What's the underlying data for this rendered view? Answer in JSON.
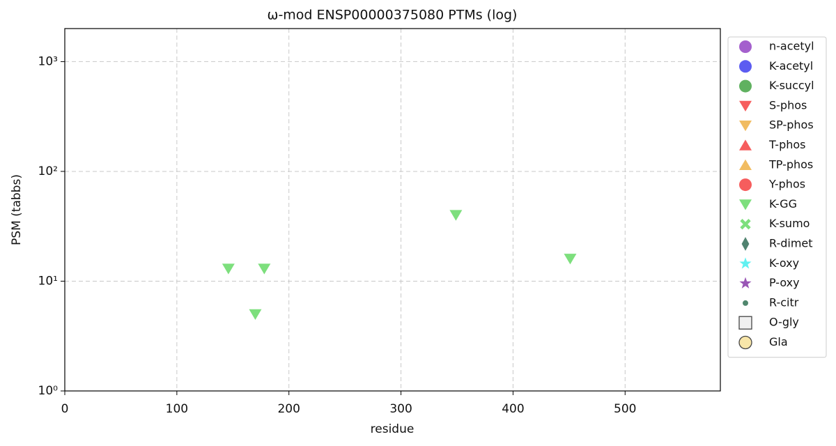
{
  "chart_data": {
    "type": "scatter",
    "title": "ω-mod ENSP00000375080 PTMs (log)",
    "x_label": "residue",
    "y_label": "PSM (tabbs)",
    "xlim": [
      0,
      585
    ],
    "xticks": [
      0,
      100,
      200,
      300,
      400,
      500
    ],
    "ylim": [
      1,
      2000
    ],
    "y_scale": "log",
    "yticks": [
      {
        "value": 1,
        "label": "10⁰"
      },
      {
        "value": 10,
        "label": "10¹"
      },
      {
        "value": 100,
        "label": "10²"
      },
      {
        "value": 1000,
        "label": "10³"
      }
    ],
    "grid": true,
    "legend_position": "outside-right",
    "series": [
      {
        "name": "n-acetyl",
        "color": "#9a4fc8",
        "marker": "circle",
        "x": [],
        "values": []
      },
      {
        "name": "K-acetyl",
        "color": "#4a4af0",
        "marker": "circle",
        "x": [],
        "values": []
      },
      {
        "name": "K-succyl",
        "color": "#4fa84f",
        "marker": "circle",
        "x": [],
        "values": []
      },
      {
        "name": "S-phos",
        "color": "#f54b4b",
        "marker": "triangle-down",
        "x": [],
        "values": []
      },
      {
        "name": "SP-phos",
        "color": "#f0b550",
        "marker": "triangle-down",
        "x": [],
        "values": []
      },
      {
        "name": "T-phos",
        "color": "#f54b4b",
        "marker": "triangle-up",
        "x": [],
        "values": []
      },
      {
        "name": "TP-phos",
        "color": "#f0b550",
        "marker": "triangle-up",
        "x": [],
        "values": []
      },
      {
        "name": "Y-phos",
        "color": "#f54b4b",
        "marker": "circle",
        "x": [],
        "values": []
      },
      {
        "name": "K-GG",
        "color": "#6fdc6f",
        "marker": "triangle-down",
        "x": [
          146,
          178,
          170,
          349,
          451
        ],
        "values": [
          13,
          13,
          5,
          40,
          16
        ]
      },
      {
        "name": "K-sumo",
        "color": "#6fdc6f",
        "marker": "x",
        "x": [],
        "values": []
      },
      {
        "name": "R-dimet",
        "color": "#3d7560",
        "marker": "diamond",
        "x": [],
        "values": []
      },
      {
        "name": "K-oxy",
        "color": "#4ff0f0",
        "marker": "star",
        "x": [],
        "values": []
      },
      {
        "name": "P-oxy",
        "color": "#8e44ad",
        "marker": "star",
        "x": [],
        "values": []
      },
      {
        "name": "R-citr",
        "color": "#3d7a5e",
        "marker": "dot",
        "x": [],
        "values": []
      },
      {
        "name": "O-gly",
        "color": "#eeeeee",
        "marker": "square",
        "x": [],
        "values": []
      },
      {
        "name": "Gla",
        "color": "#f7e3a0",
        "marker": "circle-edge",
        "x": [],
        "values": []
      }
    ]
  }
}
